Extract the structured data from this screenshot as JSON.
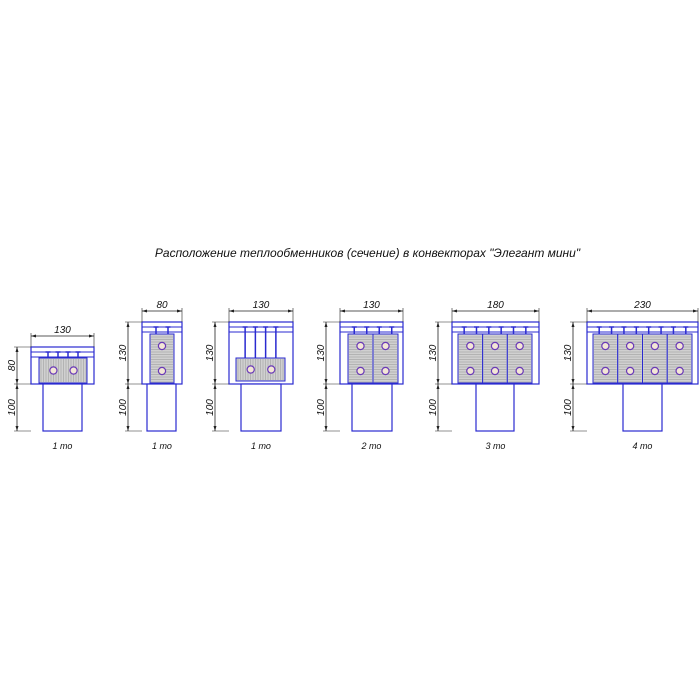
{
  "title": "Расположение теплообменников (сечение) в конвекторах \"Элегант мини\"",
  "colors": {
    "outline": "#2a2ad0",
    "dim_line": "#222222",
    "fins": "#d0d0d0",
    "fin_lines": "#888888",
    "pipe": "#6a3ab8",
    "pipe_fill": "#f3e6d6"
  },
  "panels": [
    {
      "width_label": "130",
      "height_label": "80",
      "base_label": "100",
      "caption": "1 то",
      "modules": 1,
      "layout": "horizontal-low"
    },
    {
      "width_label": "80",
      "height_label": "130",
      "base_label": "100",
      "caption": "1 то",
      "modules": 1,
      "layout": "vertical"
    },
    {
      "width_label": "130",
      "height_label": "130",
      "base_label": "100",
      "caption": "1 то",
      "modules": 1,
      "layout": "horizontal-bottom"
    },
    {
      "width_label": "130",
      "height_label": "130",
      "base_label": "100",
      "caption": "2 то",
      "modules": 2,
      "layout": "vertical"
    },
    {
      "width_label": "180",
      "height_label": "130",
      "base_label": "100",
      "caption": "3 то",
      "modules": 3,
      "layout": "vertical"
    },
    {
      "width_label": "230",
      "height_label": "130",
      "base_label": "100",
      "caption": "4 то",
      "modules": 4,
      "layout": "vertical"
    }
  ]
}
